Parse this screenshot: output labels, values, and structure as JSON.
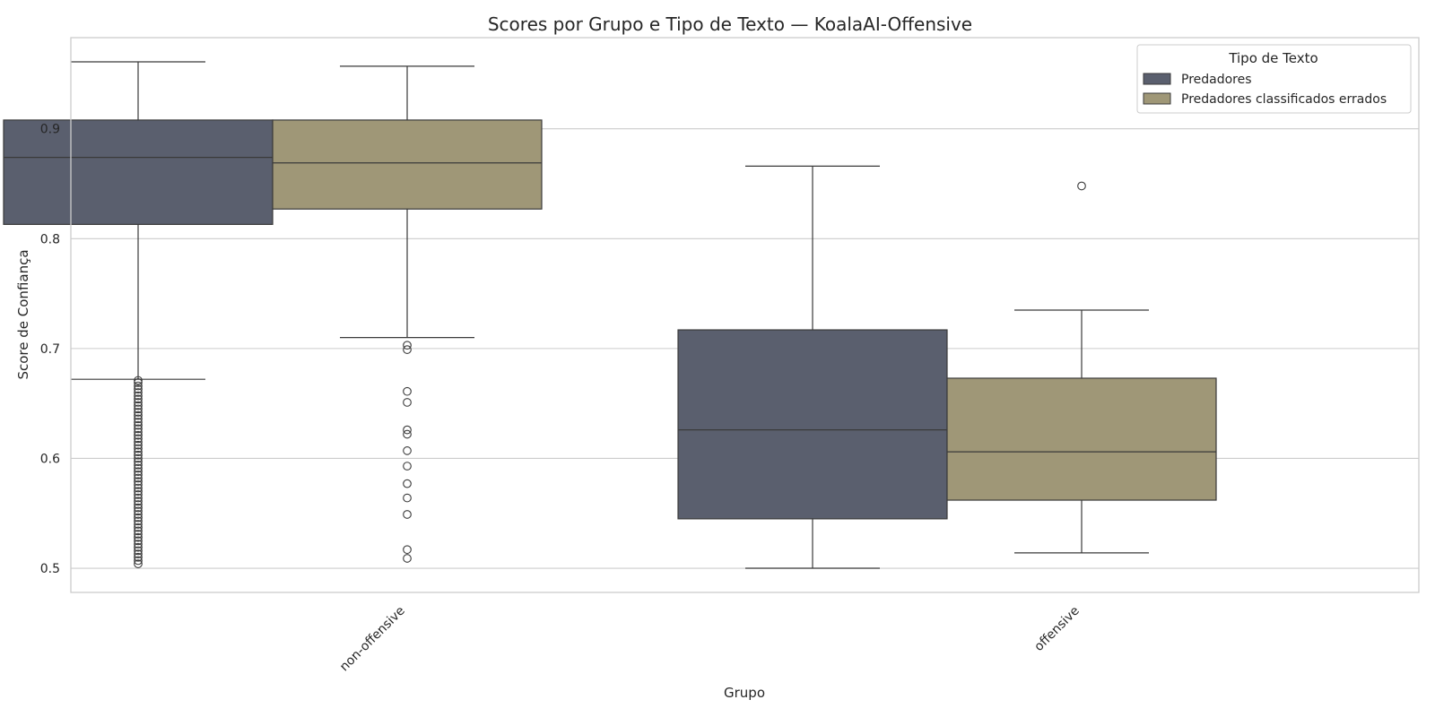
{
  "chart_data": {
    "type": "box",
    "title": "Scores por Grupo e Tipo de Texto — KoalaAI-Offensive",
    "xlabel": "Grupo",
    "ylabel": "Score de Confiança",
    "ylim": [
      0.478,
      0.983
    ],
    "yticks": [
      0.5,
      0.6,
      0.7,
      0.8,
      0.9
    ],
    "ytick_labels": [
      "0.5",
      "0.6",
      "0.7",
      "0.8",
      "0.9"
    ],
    "grid": "horizontal",
    "categories": [
      "non-offensive",
      "offensive"
    ],
    "legend": {
      "title": "Tipo de Texto",
      "position": "top-right"
    },
    "series": [
      {
        "name": "Predadores",
        "color": "#5a5f6e",
        "boxes": [
          {
            "whisker_low": 0.672,
            "q1": 0.813,
            "median": 0.874,
            "q3": 0.908,
            "whisker_high": 0.961,
            "outliers": [
              0.671,
              0.669,
              0.666,
              0.663,
              0.66,
              0.657,
              0.654,
              0.651,
              0.648,
              0.645,
              0.642,
              0.639,
              0.636,
              0.633,
              0.63,
              0.627,
              0.624,
              0.621,
              0.618,
              0.615,
              0.612,
              0.609,
              0.606,
              0.603,
              0.6,
              0.597,
              0.594,
              0.591,
              0.588,
              0.585,
              0.582,
              0.579,
              0.576,
              0.573,
              0.57,
              0.567,
              0.564,
              0.561,
              0.558,
              0.555,
              0.552,
              0.549,
              0.546,
              0.543,
              0.54,
              0.537,
              0.534,
              0.531,
              0.528,
              0.525,
              0.522,
              0.519,
              0.516,
              0.513,
              0.51,
              0.507,
              0.504
            ]
          },
          {
            "whisker_low": 0.5,
            "q1": 0.545,
            "median": 0.626,
            "q3": 0.717,
            "whisker_high": 0.866,
            "outliers": []
          }
        ]
      },
      {
        "name": "Predadores classificados errados",
        "color": "#9f9777",
        "boxes": [
          {
            "whisker_low": 0.71,
            "q1": 0.827,
            "median": 0.869,
            "q3": 0.908,
            "whisker_high": 0.957,
            "outliers": [
              0.703,
              0.699,
              0.661,
              0.651,
              0.626,
              0.622,
              0.607,
              0.593,
              0.577,
              0.564,
              0.549,
              0.517,
              0.509
            ]
          },
          {
            "whisker_low": 0.514,
            "q1": 0.562,
            "median": 0.606,
            "q3": 0.673,
            "whisker_high": 0.735,
            "outliers": [
              0.848
            ]
          }
        ]
      }
    ]
  }
}
